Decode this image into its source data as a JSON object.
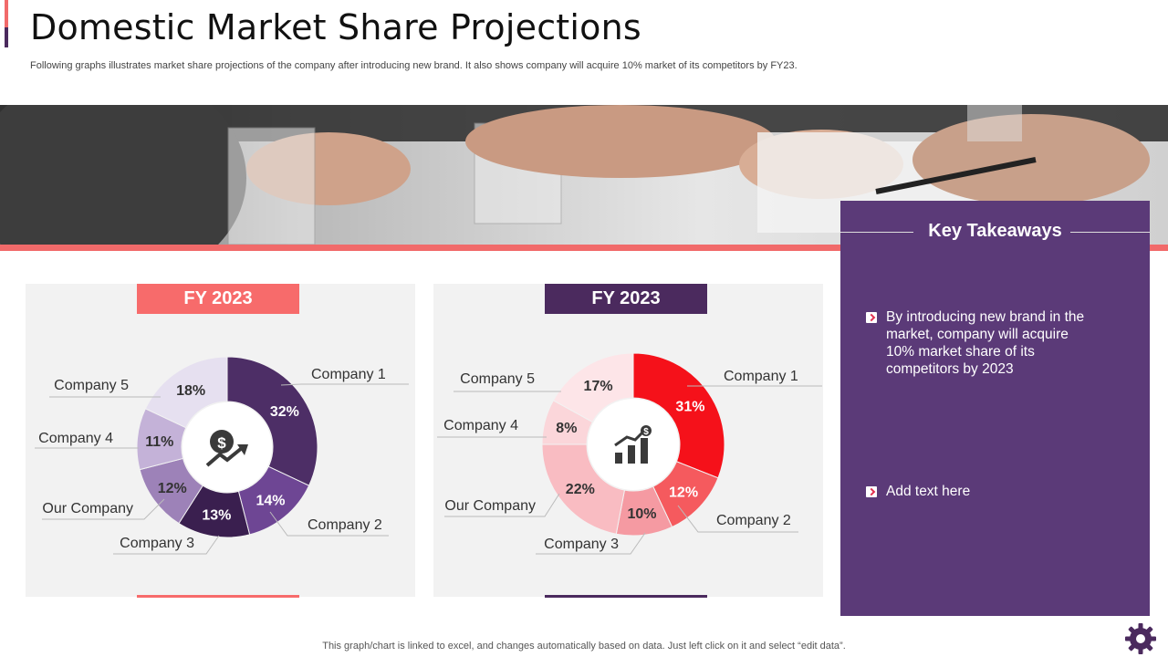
{
  "header": {
    "title": "Domestic Market Share Projections",
    "subtitle": "Following graphs illustrates market share projections of the company after introducing new brand. It also shows company will acquire 10% market of its competitors by FY23."
  },
  "key_takeaways": {
    "title": "Key Takeaways",
    "items": [
      "By introducing new brand in the market, company will acquire 10% market share of its competitors by 2023",
      "Add text here"
    ]
  },
  "footer": {
    "note": "This graph/chart is linked to excel,  and changes automatically based on data. Just left click on it and select “edit data”."
  },
  "icons": {
    "left_center": "dollar-growth-icon",
    "right_center": "bar-growth-icon",
    "corner": "gear-icon"
  },
  "colors": {
    "salmon": "#f76b6b",
    "purple": "#4b2a5e",
    "panel_bg": "#5b3a78"
  },
  "chart_data": [
    {
      "type": "pie",
      "title": "FY 2023",
      "categories": [
        "Company 1",
        "Company 2",
        "Company 3",
        "Our Company",
        "Company 4",
        "Company 5"
      ],
      "values": [
        32,
        14,
        13,
        12,
        11,
        18
      ],
      "value_labels": [
        "32%",
        "14%",
        "13%",
        "12%",
        "11%",
        "18%"
      ],
      "colors": [
        "#4d2e66",
        "#6e4694",
        "#3a1f4f",
        "#9d82b8",
        "#c4b2d8",
        "#e6e0f0"
      ],
      "label_colors": [
        "#ffffff",
        "#ffffff",
        "#ffffff",
        "#333333",
        "#333333",
        "#333333"
      ]
    },
    {
      "type": "pie",
      "title": "FY 2023",
      "categories": [
        "Company 1",
        "Company 2",
        "Company 3",
        "Our Company",
        "Company 4",
        "Company 5"
      ],
      "values": [
        31,
        12,
        10,
        22,
        8,
        17
      ],
      "value_labels": [
        "31%",
        "12%",
        "10%",
        "22%",
        "8%",
        "17%"
      ],
      "colors": [
        "#f5111a",
        "#f55a5e",
        "#f59aa2",
        "#f9bcc2",
        "#fbd6da",
        "#fde5e8"
      ],
      "label_colors": [
        "#ffffff",
        "#ffffff",
        "#333333",
        "#333333",
        "#333333",
        "#333333"
      ]
    }
  ]
}
